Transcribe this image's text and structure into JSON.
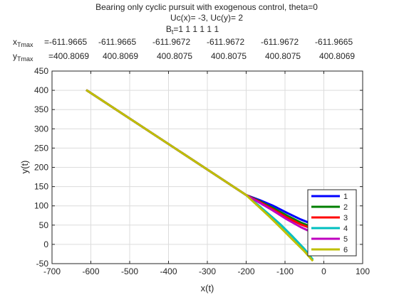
{
  "chart_data": {
    "type": "line",
    "title_lines": [
      "Bearing only cyclic pursuit with exogenous control, theta=0",
      "Uc(x)= -3, Uc(y)= 2"
    ],
    "bt_label": {
      "main": "B",
      "sub": "t",
      "rest": "=1  1  1  1  1  1"
    },
    "xtmax": {
      "label_main": "x",
      "label_sub": "Tmax",
      "values": [
        "=-611.9665",
        "-611.9665",
        "-611.9672",
        "-611.9672",
        "-611.9672",
        "-611.9665"
      ]
    },
    "ytmax": {
      "label_main": "y",
      "label_sub": "Tmax",
      "values": [
        "=400.8069",
        "400.8069",
        "400.8075",
        "400.8075",
        "400.8075",
        "400.8069"
      ]
    },
    "xlabel": "x(t)",
    "ylabel": "y(t)",
    "xlim": [
      -700,
      100
    ],
    "ylim": [
      -50,
      450
    ],
    "xticks": [
      -700,
      -600,
      -500,
      -400,
      -300,
      -200,
      -100,
      0,
      100
    ],
    "yticks": [
      -50,
      0,
      50,
      100,
      150,
      200,
      250,
      300,
      350,
      400,
      450
    ],
    "grid": true,
    "legend_position": "bottom-right",
    "series": [
      {
        "name": "1",
        "color": "#0000ff",
        "x": [
          -612,
          -200,
          -165,
          -130,
          -95,
          -60,
          -28
        ],
        "y": [
          401,
          128,
          115,
          100,
          82,
          65,
          52
        ]
      },
      {
        "name": "2",
        "color": "#007f00",
        "x": [
          -612,
          -200,
          -165,
          -130,
          -95,
          -60,
          -28
        ],
        "y": [
          401,
          128,
          112,
          94,
          75,
          57,
          44
        ]
      },
      {
        "name": "3",
        "color": "#ff0000",
        "x": [
          -612,
          -200,
          -165,
          -130,
          -95,
          -60,
          -28
        ],
        "y": [
          401,
          128,
          110,
          90,
          70,
          52,
          40
        ]
      },
      {
        "name": "4",
        "color": "#00bfbf",
        "x": [
          -612,
          -200,
          -170,
          -140,
          -110,
          -80,
          -50,
          -28
        ],
        "y": [
          401,
          128,
          103,
          77,
          50,
          20,
          -12,
          -40
        ]
      },
      {
        "name": "5",
        "color": "#bf00bf",
        "x": [
          -612,
          -200,
          -165,
          -130,
          -95,
          -60,
          -28
        ],
        "y": [
          401,
          128,
          108,
          87,
          65,
          45,
          30
        ]
      },
      {
        "name": "6",
        "color": "#bfbf00",
        "x": [
          -612,
          -200,
          -170,
          -140,
          -110,
          -80,
          -50,
          -28
        ],
        "y": [
          401,
          128,
          100,
          72,
          42,
          12,
          -18,
          -43
        ]
      }
    ]
  }
}
